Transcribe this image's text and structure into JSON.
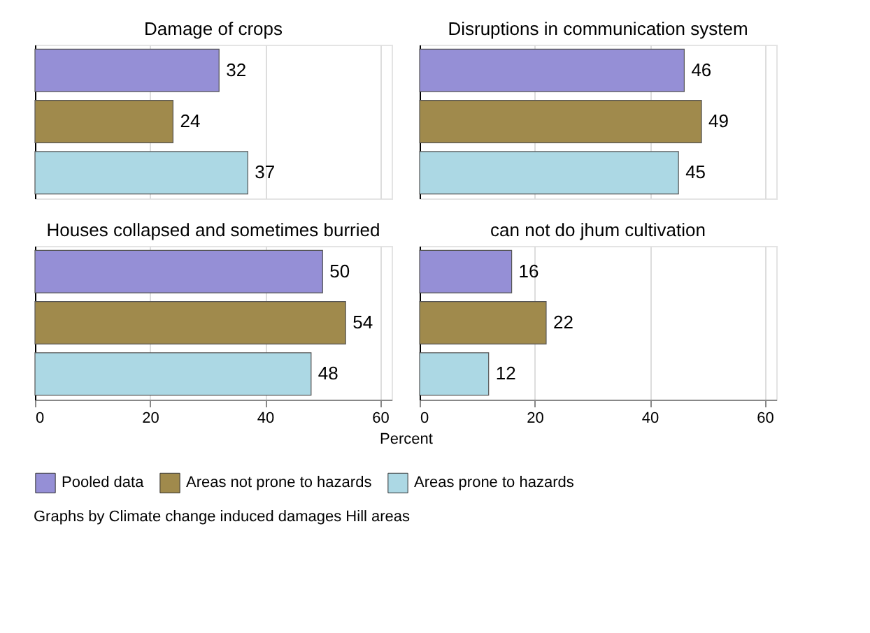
{
  "chart_data": [
    {
      "type": "bar",
      "orientation": "horizontal",
      "title": "Damage of crops",
      "categories": [
        null
      ],
      "series": [
        {
          "name": "Pooled data",
          "color": "#958fd6",
          "values": [
            32
          ]
        },
        {
          "name": "Areas not prone to hazards",
          "color": "#a08a4c",
          "values": [
            24
          ]
        },
        {
          "name": "Areas prone to hazards",
          "color": "#acd8e4",
          "values": [
            37
          ]
        }
      ],
      "xlim": [
        0,
        62
      ],
      "xticks": [
        0,
        20,
        40,
        60
      ],
      "grid": "x",
      "data_labels": true,
      "tick_labels": false,
      "legend": "bottom"
    },
    {
      "type": "bar",
      "orientation": "horizontal",
      "title": "Disruptions in communication system",
      "categories": [
        null
      ],
      "series": [
        {
          "name": "Pooled data",
          "color": "#958fd6",
          "values": [
            46
          ]
        },
        {
          "name": "Areas not prone to hazards",
          "color": "#a08a4c",
          "values": [
            49
          ]
        },
        {
          "name": "Areas prone to hazards",
          "color": "#acd8e4",
          "values": [
            45
          ]
        }
      ],
      "xlim": [
        0,
        62
      ],
      "xticks": [
        0,
        20,
        40,
        60
      ],
      "grid": "x",
      "data_labels": true,
      "tick_labels": false,
      "legend": "bottom"
    },
    {
      "type": "bar",
      "orientation": "horizontal",
      "title": "Houses collapsed and sometimes burried",
      "categories": [
        null
      ],
      "series": [
        {
          "name": "Pooled data",
          "color": "#958fd6",
          "values": [
            50
          ]
        },
        {
          "name": "Areas not prone to hazards",
          "color": "#a08a4c",
          "values": [
            54
          ]
        },
        {
          "name": "Areas prone to hazards",
          "color": "#acd8e4",
          "values": [
            48
          ]
        }
      ],
      "xlim": [
        0,
        62
      ],
      "xticks": [
        0,
        20,
        40,
        60
      ],
      "grid": "x",
      "data_labels": true,
      "tick_labels": "x",
      "legend": "bottom",
      "xlabel": "Percent",
      "annotations": [
        "Graphs by Climate change induced damages Hill areas"
      ]
    },
    {
      "type": "bar",
      "orientation": "horizontal",
      "title": "can not do jhum cultivation",
      "categories": [
        null
      ],
      "series": [
        {
          "name": "Pooled data",
          "color": "#958fd6",
          "values": [
            16
          ]
        },
        {
          "name": "Areas not prone to hazards",
          "color": "#a08a4c",
          "values": [
            22
          ]
        },
        {
          "name": "Areas prone to hazards",
          "color": "#acd8e4",
          "values": [
            12
          ]
        }
      ],
      "xlim": [
        0,
        62
      ],
      "xticks": [
        0,
        20,
        40,
        60
      ],
      "grid": "x",
      "data_labels": true,
      "tick_labels": "x",
      "legend": "bottom"
    }
  ]
}
